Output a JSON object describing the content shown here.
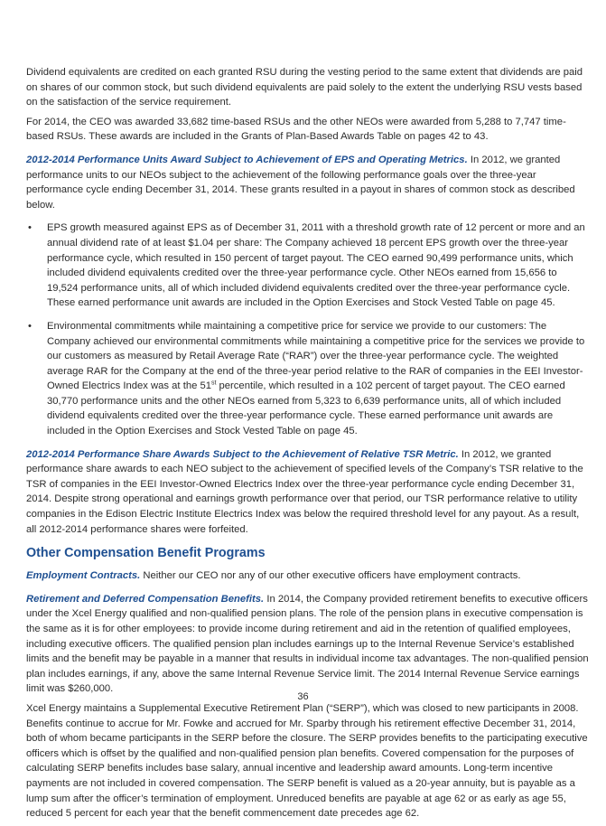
{
  "paragraphs": {
    "p1": "Dividend equivalents are credited on each granted RSU during the vesting period to the same extent that dividends are paid on shares of our common stock, but such dividend equivalents are paid solely to the extent the underlying RSU vests based on the satisfaction of the service requirement.",
    "p2": "For 2014, the CEO was awarded 33,682 time-based RSUs and the other NEOs were awarded from 5,288 to 7,747 time-based RSUs. These awards are included in the Grants of Plan-Based Awards Table on pages 42 to 43.",
    "p3_lead": "2012-2014 Performance Units Award Subject to Achievement of EPS and Operating Metrics.",
    "p3_body": " In 2012, we granted performance units to our NEOs subject to the achievement of the following performance goals over the three-year performance cycle ending December 31, 2014. These grants resulted in a payout in shares of common stock as described below.",
    "bullet_char": "•",
    "b1": "EPS growth measured against EPS as of December 31, 2011 with a threshold growth rate of 12 percent or more and an annual dividend rate of at least $1.04 per share: The Company achieved 18 percent EPS growth over the three-year performance cycle, which resulted in 150 percent of target payout. The CEO earned 90,499 performance units, which included dividend equivalents credited over the three-year performance cycle. Other NEOs earned from 15,656 to 19,524 performance units, all of which included dividend equivalents credited over the three-year performance cycle. These earned performance unit awards are included in the Option Exercises and Stock Vested Table on page 45.",
    "b2_a": "Environmental commitments while maintaining a competitive price for service we provide to our customers: The Company achieved our environmental commitments while maintaining a competitive price for the services we provide to our customers as measured by Retail Average Rate (“RAR”) over the three-year performance cycle. The weighted average RAR for the Company at the end of the three-year period relative to the RAR of companies in the EEI Investor-Owned Electrics Index was at the 51",
    "b2_sup": "st",
    "b2_b": " percentile, which resulted in a 102 percent of target payout. The CEO earned 30,770 performance units and the other NEOs earned from 5,323 to 6,639 performance units, all of which included dividend equivalents credited over the three-year performance cycle. These earned performance unit awards are included in the Option Exercises and Stock Vested Table on page 45.",
    "p4_lead": "2012-2014 Performance Share Awards Subject to the Achievement of Relative TSR Metric.",
    "p4_body": " In 2012, we granted performance share awards to each NEO subject to the achievement of specified levels of the Company’s TSR relative to the TSR of companies in the EEI Investor-Owned Electrics Index over the three-year performance cycle ending December 31, 2014. Despite strong operational and earnings growth performance over that period, our TSR performance relative to utility companies in the Edison Electric Institute Electrics Index was below the required threshold level for any payout. As a result, all 2012-2014 performance shares were forfeited.",
    "heading": "Other Compensation Benefit Programs",
    "p5_lead": "Employment Contracts.",
    "p5_body": " Neither our CEO nor any of our other executive officers have employment contracts.",
    "p6_lead": "Retirement and Deferred Compensation Benefits.",
    "p6_body": " In 2014, the Company provided retirement benefits to executive officers under the Xcel Energy qualified and non-qualified pension plans. The role of the pension plans in executive compensation is the same as it is for other employees: to provide income during retirement and aid in the retention of qualified employees, including executive officers. The qualified pension plan includes earnings up to the Internal Revenue Service’s established limits and the benefit may be payable in a manner that results in individual income tax advantages. The non-qualified pension plan includes earnings, if any, above the same Internal Revenue Service limit. The 2014 Internal Revenue Service earnings limit was $260,000.",
    "p7": "Xcel Energy maintains a Supplemental Executive Retirement Plan (“SERP”), which was closed to new participants in 2008. Benefits continue to accrue for Mr. Fowke and accrued for Mr. Sparby through his retirement effective December 31, 2014, both of whom became participants in the SERP before the closure. The SERP provides benefits to the participating executive officers which is offset by the qualified and non-qualified pension plan benefits. Covered compensation for the purposes of calculating SERP benefits includes base salary, annual incentive and leadership award amounts. Long-term incentive payments are not included in covered compensation. The SERP benefit is valued as a 20-year annuity, but is payable as a lump sum after the officer’s termination of employment. Unreduced benefits are payable at age 62 or as early as age 55, reduced 5 percent for each year that the benefit commencement date precedes age 62."
  },
  "page_number": "36",
  "colors": {
    "accent": "#1e4f91",
    "text": "#2b2b2b"
  }
}
